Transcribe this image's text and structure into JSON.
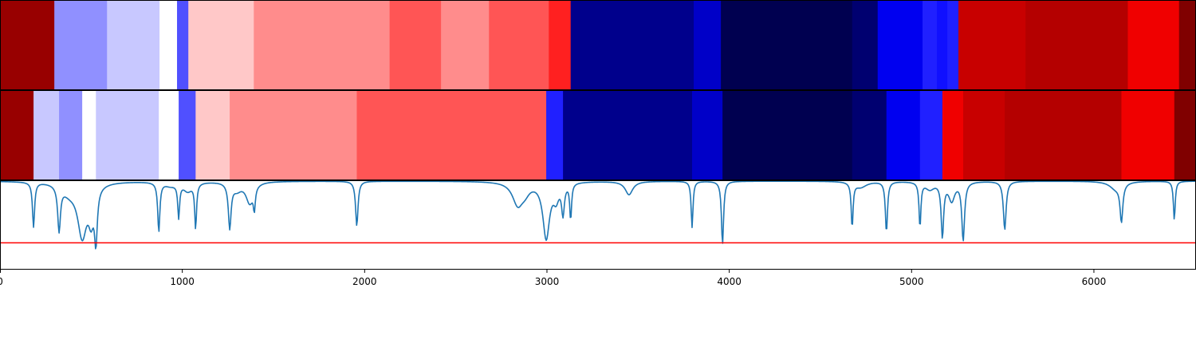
{
  "chart_data": [
    {
      "type": "heatmap",
      "title": "",
      "xlabel": "",
      "ylabel": "",
      "xlim": [
        0,
        6560
      ],
      "segments": [
        {
          "start": 0,
          "end": 298,
          "color": "#980000"
        },
        {
          "start": 298,
          "end": 587,
          "color": "#9090ff"
        },
        {
          "start": 587,
          "end": 875,
          "color": "#c8c8ff"
        },
        {
          "start": 875,
          "end": 971,
          "color": "#ffffff"
        },
        {
          "start": 971,
          "end": 1033,
          "color": "#5050ff"
        },
        {
          "start": 1033,
          "end": 1392,
          "color": "#ffc8c8"
        },
        {
          "start": 1392,
          "end": 2137,
          "color": "#ff8c8c"
        },
        {
          "start": 2137,
          "end": 2419,
          "color": "#ff5555"
        },
        {
          "start": 2419,
          "end": 2682,
          "color": "#ff8c8c"
        },
        {
          "start": 2682,
          "end": 3010,
          "color": "#ff5555"
        },
        {
          "start": 3010,
          "end": 3130,
          "color": "#ff2020"
        },
        {
          "start": 3130,
          "end": 3805,
          "color": "#00008c"
        },
        {
          "start": 3805,
          "end": 3954,
          "color": "#0000c8"
        },
        {
          "start": 3954,
          "end": 4674,
          "color": "#000050"
        },
        {
          "start": 4674,
          "end": 4814,
          "color": "#000070"
        },
        {
          "start": 4814,
          "end": 5060,
          "color": "#0000f0"
        },
        {
          "start": 5060,
          "end": 5139,
          "color": "#2020ff"
        },
        {
          "start": 5139,
          "end": 5196,
          "color": "#1010ff"
        },
        {
          "start": 5196,
          "end": 5257,
          "color": "#2020ff"
        },
        {
          "start": 5257,
          "end": 5625,
          "color": "#c80000"
        },
        {
          "start": 5625,
          "end": 6186,
          "color": "#b40000"
        },
        {
          "start": 6186,
          "end": 6467,
          "color": "#f00000"
        },
        {
          "start": 6467,
          "end": 6560,
          "color": "#800000"
        }
      ]
    },
    {
      "type": "heatmap",
      "title": "",
      "xlabel": "",
      "ylabel": "",
      "xlim": [
        0,
        6560
      ],
      "segments": [
        {
          "start": 0,
          "end": 184,
          "color": "#980000"
        },
        {
          "start": 184,
          "end": 324,
          "color": "#c8c8ff"
        },
        {
          "start": 324,
          "end": 451,
          "color": "#9090ff"
        },
        {
          "start": 451,
          "end": 526,
          "color": "#ffffff"
        },
        {
          "start": 526,
          "end": 871,
          "color": "#c8c8ff"
        },
        {
          "start": 871,
          "end": 980,
          "color": "#ffffff"
        },
        {
          "start": 980,
          "end": 1073,
          "color": "#5050ff"
        },
        {
          "start": 1073,
          "end": 1260,
          "color": "#ffc8c8"
        },
        {
          "start": 1260,
          "end": 1957,
          "color": "#ff8c8c"
        },
        {
          "start": 1957,
          "end": 2996,
          "color": "#ff5555"
        },
        {
          "start": 2996,
          "end": 3088,
          "color": "#2020ff"
        },
        {
          "start": 3088,
          "end": 3796,
          "color": "#00008c"
        },
        {
          "start": 3796,
          "end": 3963,
          "color": "#0000c8"
        },
        {
          "start": 3963,
          "end": 4674,
          "color": "#000050"
        },
        {
          "start": 4674,
          "end": 4862,
          "color": "#000070"
        },
        {
          "start": 4862,
          "end": 5046,
          "color": "#0000f0"
        },
        {
          "start": 5046,
          "end": 5169,
          "color": "#2020ff"
        },
        {
          "start": 5169,
          "end": 5283,
          "color": "#f00000"
        },
        {
          "start": 5283,
          "end": 5511,
          "color": "#c80000"
        },
        {
          "start": 5511,
          "end": 6151,
          "color": "#b40000"
        },
        {
          "start": 6151,
          "end": 6441,
          "color": "#f00000"
        },
        {
          "start": 6441,
          "end": 6560,
          "color": "#800000"
        }
      ]
    },
    {
      "type": "line",
      "title": "",
      "xlabel": "",
      "ylabel": "",
      "xlim": [
        0,
        6560
      ],
      "ylim": [
        -0.2,
        1.0
      ],
      "xticks": [
        0,
        1000,
        2000,
        3000,
        4000,
        5000,
        6000
      ],
      "xtick_labels": [
        "0",
        "1000",
        "2000",
        "3000",
        "4000",
        "5000",
        "6000"
      ],
      "grid": false,
      "baseline": 0.99,
      "threshold": {
        "value": 0.16,
        "color": "#ff0000"
      },
      "series": [
        {
          "color": "#1f77b4",
          "dips": [
            {
              "x": 184,
              "depth": 0.6,
              "width": 7
            },
            {
              "x": 324,
              "depth": 0.6,
              "width": 9
            },
            {
              "x": 380,
              "depth": 0.12,
              "width": 50
            },
            {
              "x": 451,
              "depth": 0.7,
              "width": 30
            },
            {
              "x": 500,
              "depth": 0.4,
              "width": 18
            },
            {
              "x": 526,
              "depth": 0.68,
              "width": 9
            },
            {
              "x": 871,
              "depth": 0.66,
              "width": 7
            },
            {
              "x": 935,
              "depth": 0.05,
              "width": 40
            },
            {
              "x": 980,
              "depth": 0.45,
              "width": 6
            },
            {
              "x": 1030,
              "depth": 0.12,
              "width": 30
            },
            {
              "x": 1073,
              "depth": 0.6,
              "width": 6
            },
            {
              "x": 1260,
              "depth": 0.6,
              "width": 9
            },
            {
              "x": 1300,
              "depth": 0.1,
              "width": 30
            },
            {
              "x": 1370,
              "depth": 0.28,
              "width": 25
            },
            {
              "x": 1395,
              "depth": 0.28,
              "width": 6
            },
            {
              "x": 1957,
              "depth": 0.6,
              "width": 8
            },
            {
              "x": 2840,
              "depth": 0.3,
              "width": 35
            },
            {
              "x": 2880,
              "depth": 0.1,
              "width": 30
            },
            {
              "x": 2996,
              "depth": 0.75,
              "width": 22
            },
            {
              "x": 3050,
              "depth": 0.2,
              "width": 18
            },
            {
              "x": 3088,
              "depth": 0.4,
              "width": 9
            },
            {
              "x": 3130,
              "depth": 0.48,
              "width": 6
            },
            {
              "x": 3450,
              "depth": 0.18,
              "width": 25
            },
            {
              "x": 3796,
              "depth": 0.62,
              "width": 6
            },
            {
              "x": 3963,
              "depth": 0.85,
              "width": 7
            },
            {
              "x": 4674,
              "depth": 0.6,
              "width": 6
            },
            {
              "x": 4720,
              "depth": 0.08,
              "width": 40
            },
            {
              "x": 4862,
              "depth": 0.68,
              "width": 7
            },
            {
              "x": 5046,
              "depth": 0.6,
              "width": 6
            },
            {
              "x": 5100,
              "depth": 0.1,
              "width": 30
            },
            {
              "x": 5169,
              "depth": 0.72,
              "width": 8
            },
            {
              "x": 5220,
              "depth": 0.25,
              "width": 20
            },
            {
              "x": 5283,
              "depth": 0.78,
              "width": 9
            },
            {
              "x": 5511,
              "depth": 0.65,
              "width": 9
            },
            {
              "x": 6120,
              "depth": 0.1,
              "width": 40
            },
            {
              "x": 6151,
              "depth": 0.5,
              "width": 9
            },
            {
              "x": 6441,
              "depth": 0.52,
              "width": 6
            }
          ]
        }
      ]
    }
  ]
}
